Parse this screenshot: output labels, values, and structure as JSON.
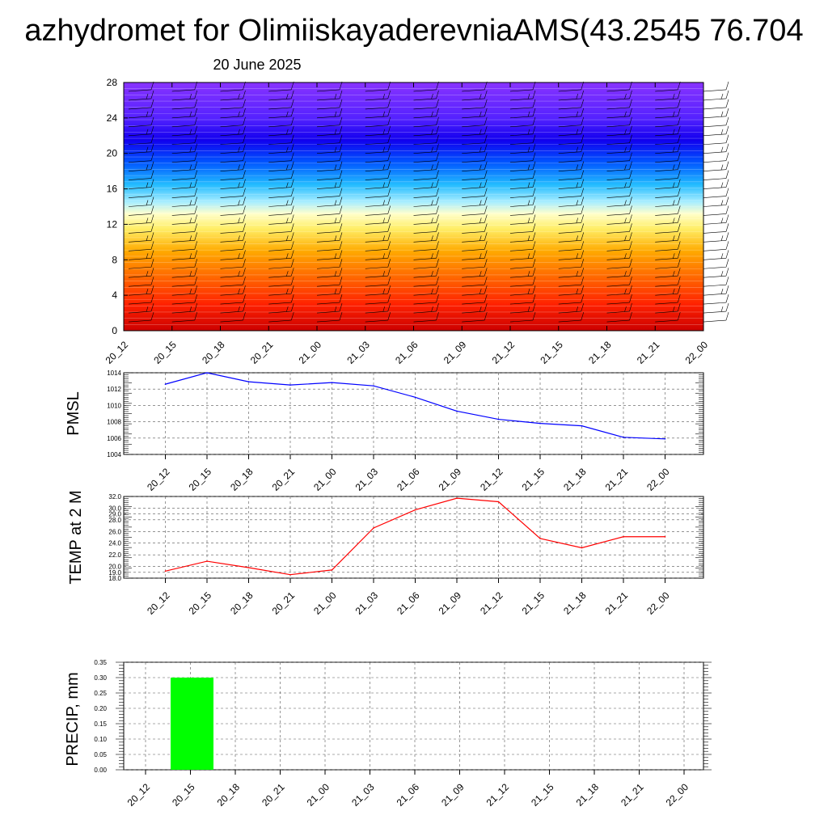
{
  "header": {
    "title": "azhydromet for OlimiiskayaderevniaAMS(43.2545 76.704",
    "subtitle": "20 June 2025"
  },
  "colors": {
    "pmsl_line": "#0000ff",
    "temp_line": "#ff0000",
    "precip_bar": "#00ff00"
  },
  "chart_data": [
    {
      "type": "heatmap",
      "title": "",
      "xlabel": "",
      "ylabel": "",
      "x_ticks": [
        "20_12",
        "20_15",
        "20_18",
        "20_21",
        "21_00",
        "21_03",
        "21_06",
        "21_09",
        "21_12",
        "21_15",
        "21_18",
        "21_21",
        "22_00"
      ],
      "y_ticks": [
        "0",
        "4",
        "8",
        "12",
        "16",
        "20",
        "24",
        "28"
      ],
      "ylim": [
        0,
        28
      ],
      "colormap": [
        "#cc0000",
        "#ff2200",
        "#ff6600",
        "#ffaa00",
        "#ffee66",
        "#ffffcc",
        "#aaeeff",
        "#22bbff",
        "#0055ff",
        "#1100ee",
        "#5522ff",
        "#8833ff"
      ],
      "band_levels": [
        0,
        3,
        6,
        9,
        11.5,
        13.2,
        14.5,
        16.5,
        19,
        21.5,
        24,
        28
      ],
      "overlay": "wind barbs"
    },
    {
      "type": "line",
      "title": "",
      "xlabel": "",
      "ylabel": "PMSL",
      "categories": [
        "20_12",
        "20_15",
        "20_18",
        "20_21",
        "21_00",
        "21_03",
        "21_06",
        "21_09",
        "21_12",
        "21_15",
        "21_18",
        "21_21",
        "22_00"
      ],
      "y_ticks": [
        "1004",
        "1006",
        "1008",
        "1010",
        "1012",
        "1014"
      ],
      "ylim": [
        1004,
        1014
      ],
      "series": [
        {
          "values": [
            1012.6,
            1014.0,
            1012.9,
            1012.5,
            1012.8,
            1012.4,
            1011.0,
            1009.3,
            1008.3,
            1007.8,
            1007.5,
            1006.1,
            1005.9
          ]
        }
      ],
      "grid": true
    },
    {
      "type": "line",
      "title": "",
      "xlabel": "",
      "ylabel": "TEMP at 2 M",
      "categories": [
        "20_12",
        "20_15",
        "20_18",
        "20_21",
        "21_00",
        "21_03",
        "21_06",
        "21_09",
        "21_12",
        "21_15",
        "21_18",
        "21_21",
        "22_00"
      ],
      "y_ticks": [
        "18.0",
        "19.0",
        "20.0",
        "22.0",
        "24.0",
        "26.0",
        "28.0",
        "29.0",
        "30.0",
        "32.0"
      ],
      "ylim": [
        18,
        32
      ],
      "series": [
        {
          "values": [
            19.2,
            20.9,
            19.8,
            18.6,
            19.4,
            26.6,
            29.7,
            31.7,
            31.1,
            24.8,
            23.2,
            25.1,
            25.1
          ]
        }
      ],
      "grid": true
    },
    {
      "type": "bar",
      "title": "",
      "xlabel": "",
      "ylabel": "PRECIP, mm",
      "categories": [
        "20_12",
        "20_15",
        "20_18",
        "20_21",
        "21_00",
        "21_03",
        "21_06",
        "21_09",
        "21_12",
        "21_15",
        "21_18",
        "21_21",
        "22_00"
      ],
      "y_ticks": [
        "0.00",
        "0.05",
        "0.10",
        "0.15",
        "0.20",
        "0.25",
        "0.30",
        "0.35"
      ],
      "ylim": [
        0,
        0.35
      ],
      "values": [
        0,
        0.3,
        0,
        0,
        0,
        0,
        0,
        0,
        0,
        0,
        0,
        0,
        0
      ],
      "grid": true
    }
  ]
}
